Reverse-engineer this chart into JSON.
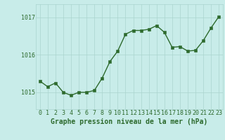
{
  "x": [
    0,
    1,
    2,
    3,
    4,
    5,
    6,
    7,
    8,
    9,
    10,
    11,
    12,
    13,
    14,
    15,
    16,
    17,
    18,
    19,
    20,
    21,
    22,
    23
  ],
  "y": [
    1015.3,
    1015.15,
    1015.25,
    1015.0,
    1014.92,
    1015.0,
    1015.0,
    1015.05,
    1015.38,
    1015.82,
    1016.1,
    1016.55,
    1016.65,
    1016.65,
    1016.68,
    1016.78,
    1016.6,
    1016.2,
    1016.22,
    1016.1,
    1016.12,
    1016.38,
    1016.72,
    1017.02
  ],
  "line_color": "#2d6a2d",
  "marker_color": "#2d6a2d",
  "bg_color": "#c8ece9",
  "grid_color": "#aad4ce",
  "title": "Graphe pression niveau de la mer (hPa)",
  "ylim_min": 1014.55,
  "ylim_max": 1017.35,
  "yticks": [
    1015,
    1016,
    1017
  ],
  "xticks": [
    0,
    1,
    2,
    3,
    4,
    5,
    6,
    7,
    8,
    9,
    10,
    11,
    12,
    13,
    14,
    15,
    16,
    17,
    18,
    19,
    20,
    21,
    22,
    23
  ],
  "title_fontsize": 7.0,
  "tick_fontsize": 6.0,
  "line_width": 1.0,
  "marker_size": 2.2
}
